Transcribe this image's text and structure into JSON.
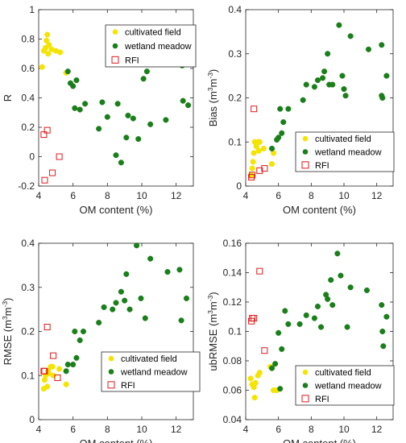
{
  "chart_data": [
    {
      "type": "scatter",
      "xlabel": "OM content (%)",
      "ylabel": "R",
      "xlim": [
        4,
        13
      ],
      "ylim": [
        -0.2,
        1
      ],
      "xticks": [
        4,
        6,
        8,
        10,
        12
      ],
      "yticks": [
        -0.2,
        0,
        0.2,
        0.4,
        0.6,
        0.8,
        1
      ],
      "ytick_labels": [
        "-0.2",
        "0",
        "0.2",
        "0.4",
        "0.6",
        "0.8",
        "1"
      ],
      "legend": "top-right",
      "series": [
        {
          "name": "cultivated field",
          "color": "#f5e400",
          "marker": "filled-circle",
          "points": [
            [
              4.2,
              0.61
            ],
            [
              4.3,
              0.72
            ],
            [
              4.4,
              0.74
            ],
            [
              4.45,
              0.79
            ],
            [
              4.5,
              0.83
            ],
            [
              4.55,
              0.7
            ],
            [
              4.6,
              0.76
            ],
            [
              4.75,
              0.73
            ],
            [
              5.0,
              0.72
            ],
            [
              5.25,
              0.71
            ],
            [
              5.6,
              0.57
            ]
          ]
        },
        {
          "name": "wetland meadow",
          "color": "#1a7f1a",
          "marker": "filled-circle",
          "points": [
            [
              5.7,
              0.58
            ],
            [
              5.85,
              0.5
            ],
            [
              6.0,
              0.48
            ],
            [
              6.1,
              0.33
            ],
            [
              6.2,
              0.52
            ],
            [
              6.4,
              0.32
            ],
            [
              6.7,
              0.36
            ],
            [
              7.5,
              0.19
            ],
            [
              7.7,
              0.37
            ],
            [
              8.0,
              0.27
            ],
            [
              8.5,
              0.01
            ],
            [
              8.6,
              0.36
            ],
            [
              8.8,
              -0.04
            ],
            [
              9.1,
              0.13
            ],
            [
              9.2,
              0.28
            ],
            [
              9.5,
              0.26
            ],
            [
              9.8,
              0.12
            ],
            [
              10.1,
              0.53
            ],
            [
              10.3,
              0.58
            ],
            [
              10.5,
              0.22
            ],
            [
              11.4,
              0.25
            ],
            [
              12.3,
              0.64
            ],
            [
              12.35,
              0.62
            ],
            [
              12.4,
              0.38
            ],
            [
              12.7,
              0.35
            ]
          ]
        },
        {
          "name": "RFI",
          "color": "#e0191b",
          "marker": "open-square",
          "points": [
            [
              4.3,
              0.15
            ],
            [
              4.35,
              -0.16
            ],
            [
              4.5,
              0.18
            ],
            [
              4.8,
              -0.11
            ],
            [
              5.2,
              0.0
            ]
          ]
        }
      ]
    },
    {
      "type": "scatter",
      "xlabel": "OM content (%)",
      "ylabel": "Bias (m3m-3)",
      "ylabel_parts": [
        "Bias (m",
        "3",
        "m",
        "-3",
        ")"
      ],
      "xlim": [
        4,
        13
      ],
      "ylim": [
        0,
        0.4
      ],
      "xticks": [
        4,
        6,
        8,
        10,
        12
      ],
      "yticks": [
        0,
        0.1,
        0.2,
        0.3,
        0.4
      ],
      "ytick_labels": [
        "0",
        "0.1",
        "0.2",
        "0.3",
        "0.4"
      ],
      "legend": "bottom-right",
      "series": [
        {
          "name": "cultivated field",
          "color": "#f5e400",
          "marker": "filled-circle",
          "points": [
            [
              4.35,
              0.025
            ],
            [
              4.4,
              0.04
            ],
            [
              4.45,
              0.055
            ],
            [
              4.5,
              0.075
            ],
            [
              4.55,
              0.1
            ],
            [
              4.65,
              0.09
            ],
            [
              4.75,
              0.1
            ],
            [
              4.8,
              0.08
            ],
            [
              4.85,
              0.1
            ],
            [
              5.1,
              0.085
            ],
            [
              5.6,
              0.05
            ],
            [
              5.7,
              0.075
            ]
          ]
        },
        {
          "name": "wetland meadow",
          "color": "#1a7f1a",
          "marker": "filled-circle",
          "points": [
            [
              5.6,
              0.085
            ],
            [
              5.9,
              0.105
            ],
            [
              6.0,
              0.11
            ],
            [
              6.1,
              0.175
            ],
            [
              6.2,
              0.12
            ],
            [
              6.3,
              0.145
            ],
            [
              6.6,
              0.175
            ],
            [
              7.5,
              0.195
            ],
            [
              7.7,
              0.23
            ],
            [
              8.2,
              0.225
            ],
            [
              8.4,
              0.24
            ],
            [
              8.7,
              0.245
            ],
            [
              8.8,
              0.26
            ],
            [
              9.0,
              0.3
            ],
            [
              9.1,
              0.23
            ],
            [
              9.3,
              0.23
            ],
            [
              9.7,
              0.365
            ],
            [
              9.9,
              0.25
            ],
            [
              10.0,
              0.22
            ],
            [
              10.1,
              0.205
            ],
            [
              10.4,
              0.34
            ],
            [
              11.5,
              0.31
            ],
            [
              12.3,
              0.32
            ],
            [
              12.3,
              0.205
            ],
            [
              12.35,
              0.2
            ],
            [
              12.6,
              0.25
            ]
          ]
        },
        {
          "name": "RFI",
          "color": "#e0191b",
          "marker": "open-square",
          "points": [
            [
              4.35,
              0.02
            ],
            [
              4.4,
              0.025
            ],
            [
              4.5,
              0.175
            ],
            [
              4.85,
              0.035
            ],
            [
              5.15,
              0.04
            ]
          ]
        }
      ]
    },
    {
      "type": "scatter",
      "xlabel": "OM content (%)",
      "ylabel": "RMSE (m3m-3)",
      "ylabel_parts": [
        "RMSE (m",
        "3",
        "m",
        "-3",
        ")"
      ],
      "xlim": [
        4,
        13
      ],
      "ylim": [
        0,
        0.4
      ],
      "xticks": [
        4,
        6,
        8,
        10,
        12
      ],
      "yticks": [
        0,
        0.1,
        0.2,
        0.3,
        0.4
      ],
      "ytick_labels": [
        "0",
        "0.1",
        "0.2",
        "0.3",
        "0.4"
      ],
      "legend": "bottom-right",
      "series": [
        {
          "name": "cultivated field",
          "color": "#f5e400",
          "marker": "filled-circle",
          "points": [
            [
              4.3,
              0.07
            ],
            [
              4.35,
              0.09
            ],
            [
              4.4,
              0.1
            ],
            [
              4.5,
              0.075
            ],
            [
              4.55,
              0.11
            ],
            [
              4.6,
              0.105
            ],
            [
              4.7,
              0.12
            ],
            [
              4.8,
              0.12
            ],
            [
              4.85,
              0.1
            ],
            [
              5.2,
              0.115
            ],
            [
              5.6,
              0.08
            ]
          ]
        },
        {
          "name": "wetland meadow",
          "color": "#1a7f1a",
          "marker": "filled-circle",
          "points": [
            [
              5.6,
              0.11
            ],
            [
              5.7,
              0.125
            ],
            [
              6.0,
              0.125
            ],
            [
              6.1,
              0.2
            ],
            [
              6.2,
              0.14
            ],
            [
              6.4,
              0.18
            ],
            [
              6.6,
              0.2
            ],
            [
              7.5,
              0.22
            ],
            [
              7.8,
              0.255
            ],
            [
              8.3,
              0.25
            ],
            [
              8.5,
              0.265
            ],
            [
              8.8,
              0.29
            ],
            [
              9.0,
              0.27
            ],
            [
              9.1,
              0.33
            ],
            [
              9.3,
              0.25
            ],
            [
              9.7,
              0.395
            ],
            [
              9.95,
              0.275
            ],
            [
              10.2,
              0.23
            ],
            [
              10.5,
              0.365
            ],
            [
              11.5,
              0.335
            ],
            [
              12.2,
              0.34
            ],
            [
              12.3,
              0.225
            ],
            [
              12.6,
              0.275
            ]
          ]
        },
        {
          "name": "RFI",
          "color": "#e0191b",
          "marker": "open-square",
          "points": [
            [
              4.3,
              0.11
            ],
            [
              4.35,
              0.11
            ],
            [
              4.5,
              0.21
            ],
            [
              4.85,
              0.145
            ],
            [
              5.1,
              0.095
            ]
          ]
        }
      ]
    },
    {
      "type": "scatter",
      "xlabel": "OM content (%)",
      "ylabel": "ubRMSE (m3m-3)",
      "ylabel_parts": [
        "ubRMSE (m",
        "3",
        "m",
        "-3",
        ")"
      ],
      "xlim": [
        4,
        13
      ],
      "ylim": [
        0.04,
        0.16
      ],
      "xticks": [
        4,
        6,
        8,
        10,
        12
      ],
      "yticks": [
        0.04,
        0.06,
        0.08,
        0.1,
        0.12,
        0.14,
        0.16
      ],
      "ytick_labels": [
        "0.04",
        "0.06",
        "0.08",
        "0.1",
        "0.12",
        "0.14",
        "0.16"
      ],
      "legend": "bottom-right",
      "series": [
        {
          "name": "cultivated field",
          "color": "#f5e400",
          "marker": "filled-circle",
          "points": [
            [
              4.3,
              0.068
            ],
            [
              4.4,
              0.064
            ],
            [
              4.5,
              0.062
            ],
            [
              4.55,
              0.055
            ],
            [
              4.6,
              0.065
            ],
            [
              4.75,
              0.07
            ],
            [
              4.85,
              0.072
            ],
            [
              5.5,
              0.076
            ],
            [
              5.7,
              0.06
            ],
            [
              5.9,
              0.06
            ]
          ]
        },
        {
          "name": "wetland meadow",
          "color": "#1a7f1a",
          "marker": "filled-circle",
          "points": [
            [
              5.6,
              0.075
            ],
            [
              5.8,
              0.078
            ],
            [
              6.0,
              0.099
            ],
            [
              6.1,
              0.061
            ],
            [
              6.2,
              0.088
            ],
            [
              6.4,
              0.114
            ],
            [
              6.6,
              0.105
            ],
            [
              7.3,
              0.105
            ],
            [
              7.7,
              0.111
            ],
            [
              8.2,
              0.109
            ],
            [
              8.4,
              0.117
            ],
            [
              8.6,
              0.103
            ],
            [
              8.9,
              0.125
            ],
            [
              9.0,
              0.122
            ],
            [
              9.2,
              0.135
            ],
            [
              9.3,
              0.118
            ],
            [
              9.6,
              0.153
            ],
            [
              9.8,
              0.138
            ],
            [
              10.2,
              0.103
            ],
            [
              10.4,
              0.13
            ],
            [
              11.4,
              0.128
            ],
            [
              12.3,
              0.118
            ],
            [
              12.35,
              0.1
            ],
            [
              12.4,
              0.09
            ],
            [
              12.6,
              0.11
            ]
          ]
        },
        {
          "name": "RFI",
          "color": "#e0191b",
          "marker": "open-square",
          "points": [
            [
              4.35,
              0.107
            ],
            [
              4.4,
              0.109
            ],
            [
              4.5,
              0.109
            ],
            [
              4.85,
              0.141
            ],
            [
              5.15,
              0.087
            ]
          ]
        }
      ]
    }
  ]
}
